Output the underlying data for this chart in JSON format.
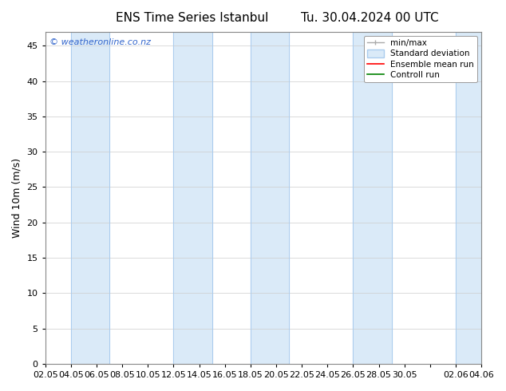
{
  "title_left": "ENS Time Series Istanbul",
  "title_right": "Tu. 30.04.2024 00 UTC",
  "ylabel": "Wind 10m (m/s)",
  "watermark": "© weatheronline.co.nz",
  "ylim": [
    0,
    47
  ],
  "yticks": [
    0,
    5,
    10,
    15,
    20,
    25,
    30,
    35,
    40,
    45
  ],
  "xtick_labels": [
    "02.05",
    "04.05",
    "06.05",
    "08.05",
    "10.05",
    "12.05",
    "14.05",
    "16.05",
    "18.05",
    "20.05",
    "22.05",
    "24.05",
    "26.05",
    "28.05",
    "30.05",
    "",
    "02.06",
    "04.06"
  ],
  "background_color": "#ffffff",
  "plot_bg_color": "#ffffff",
  "shade_color": "#daeaf8",
  "shade_edge_color": "#aaccee",
  "legend_labels": [
    "min/max",
    "Standard deviation",
    "Ensemble mean run",
    "Controll run"
  ],
  "legend_line_color": "#aaaaaa",
  "legend_red": "#ff0000",
  "legend_green": "#008000",
  "legend_shade": "#daeaf8",
  "title_fontsize": 11,
  "axis_fontsize": 9,
  "tick_fontsize": 8,
  "watermark_color": "#3366cc"
}
